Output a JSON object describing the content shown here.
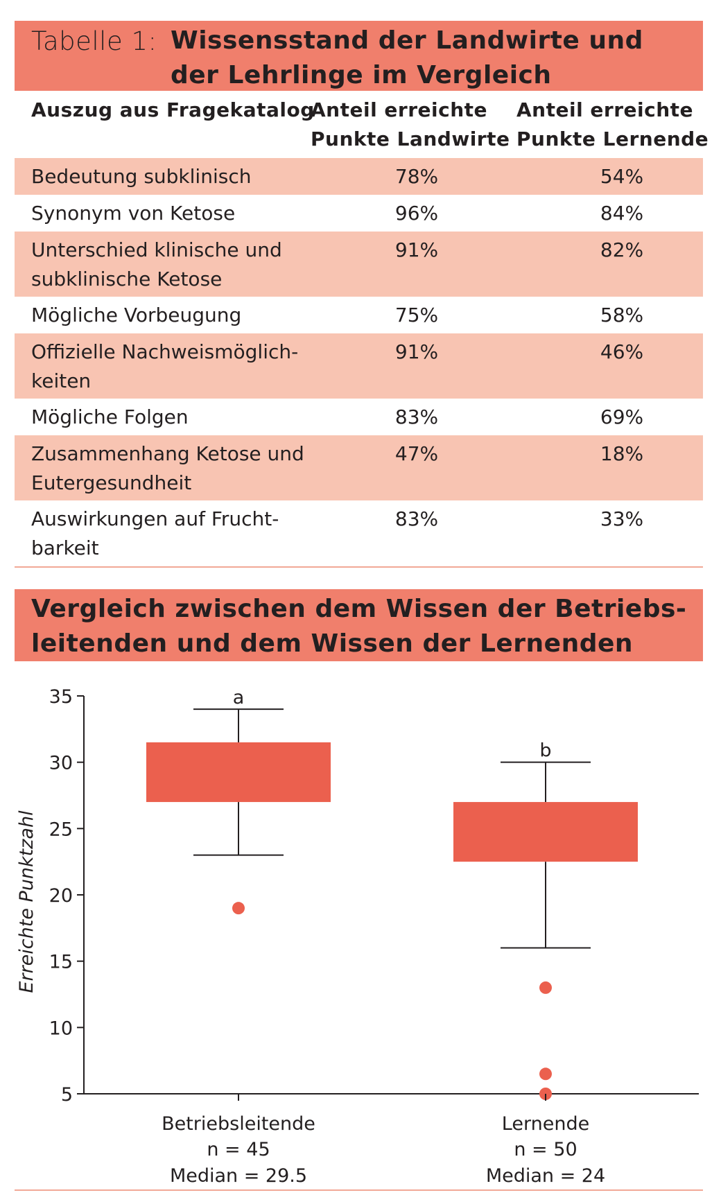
{
  "table": {
    "label": "Tabelle 1:",
    "title_lines": [
      "Wissensstand der Landwirte und",
      "der Lehrlinge im Vergleich"
    ],
    "headers": [
      [
        "Auszug aus Fragekatalog"
      ],
      [
        "Anteil erreichte",
        "Punkte Landwirte"
      ],
      [
        "Anteil erreichte",
        "Punkte Lernende"
      ]
    ],
    "rows": [
      {
        "lines": [
          "Bedeutung subklinisch"
        ],
        "landwirte": "78%",
        "lernende": "54%"
      },
      {
        "lines": [
          "Synonym von Ketose"
        ],
        "landwirte": "96%",
        "lernende": "84%"
      },
      {
        "lines": [
          "Unterschied klinische und",
          "subklinische Ketose"
        ],
        "landwirte": "91%",
        "lernende": "82%"
      },
      {
        "lines": [
          "Mögliche Vorbeugung"
        ],
        "landwirte": "75%",
        "lernende": "58%"
      },
      {
        "lines": [
          "Offizielle Nachweismöglich-",
          "keiten"
        ],
        "landwirte": "91%",
        "lernende": "46%"
      },
      {
        "lines": [
          "Mögliche Folgen"
        ],
        "landwirte": "83%",
        "lernende": "69%"
      },
      {
        "lines": [
          "Zusammenhang Ketose und",
          "Eutergesundheit"
        ],
        "landwirte": "47%",
        "lernende": "18%"
      },
      {
        "lines": [
          "Auswirkungen auf Frucht-",
          "barkeit"
        ],
        "landwirte": "83%",
        "lernende": "33%"
      }
    ]
  },
  "colors": {
    "banner": "#f07f6c",
    "row_shade": "#f8c4b2",
    "box": "#eb604e",
    "text": "#231f20"
  },
  "chart_data": {
    "type": "boxplot",
    "title_lines": [
      "Vergleich zwischen dem Wissen der Betriebs-",
      "leitenden und dem Wissen der Lernenden"
    ],
    "ylabel": "Erreichte Punktzahl",
    "ylim": [
      5,
      35
    ],
    "yticks": [
      5,
      10,
      15,
      20,
      25,
      30,
      35
    ],
    "groups": [
      {
        "name": "Betriebsleitende",
        "n_label": "n = 45",
        "median_label": "Median = 29.5",
        "letter": "a",
        "whisker_low": 23,
        "q1": 27,
        "q3": 31.5,
        "whisker_high": 34,
        "outliers": [
          19
        ]
      },
      {
        "name": "Lernende",
        "n_label": "n = 50",
        "median_label": "Median = 24",
        "letter": "b",
        "whisker_low": 16,
        "q1": 22.5,
        "q3": 27,
        "whisker_high": 30,
        "outliers": [
          13,
          6.5,
          5
        ]
      }
    ]
  }
}
